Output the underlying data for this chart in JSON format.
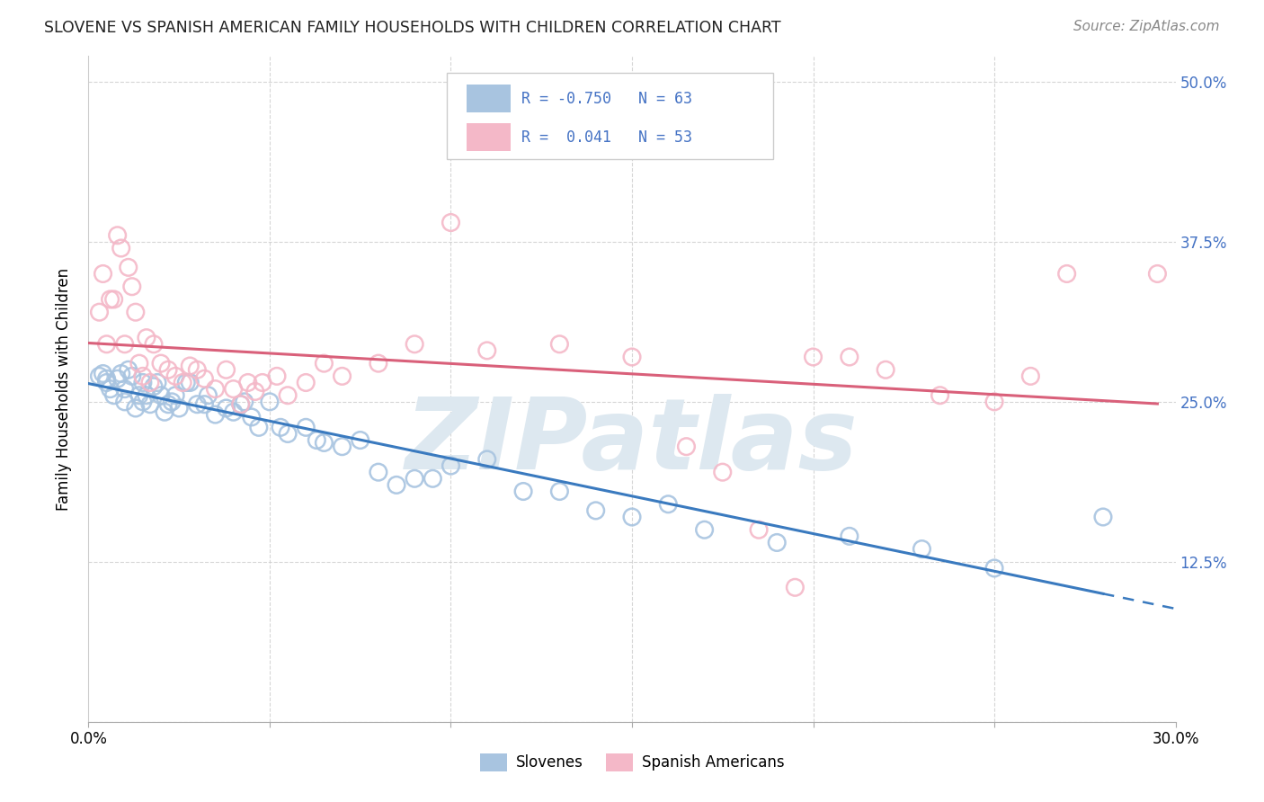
{
  "title": "SLOVENE VS SPANISH AMERICAN FAMILY HOUSEHOLDS WITH CHILDREN CORRELATION CHART",
  "source": "Source: ZipAtlas.com",
  "ylabel": "Family Households with Children",
  "xlim": [
    0.0,
    0.3
  ],
  "ylim": [
    0.0,
    0.52
  ],
  "slovene_marker_color": "#a8c4e0",
  "spanish_marker_color": "#f4b8c8",
  "slovene_line_color": "#3a7abf",
  "spanish_line_color": "#d9607a",
  "legend_text_color": "#4472c4",
  "right_axis_color": "#4472c4",
  "background_color": "#ffffff",
  "grid_color": "#cccccc",
  "title_color": "#222222",
  "source_color": "#888888",
  "watermark_text": "ZIPatlas",
  "watermark_color": "#dde8f0",
  "slovene_x": [
    0.003,
    0.004,
    0.005,
    0.005,
    0.006,
    0.007,
    0.008,
    0.009,
    0.01,
    0.01,
    0.011,
    0.012,
    0.013,
    0.014,
    0.015,
    0.015,
    0.016,
    0.017,
    0.018,
    0.019,
    0.02,
    0.021,
    0.022,
    0.023,
    0.024,
    0.025,
    0.027,
    0.028,
    0.03,
    0.032,
    0.033,
    0.035,
    0.038,
    0.04,
    0.042,
    0.043,
    0.045,
    0.047,
    0.05,
    0.053,
    0.055,
    0.06,
    0.063,
    0.065,
    0.07,
    0.075,
    0.08,
    0.085,
    0.09,
    0.095,
    0.1,
    0.11,
    0.12,
    0.13,
    0.14,
    0.15,
    0.16,
    0.17,
    0.19,
    0.21,
    0.23,
    0.25,
    0.28
  ],
  "slovene_y": [
    0.27,
    0.272,
    0.265,
    0.268,
    0.26,
    0.255,
    0.268,
    0.272,
    0.26,
    0.25,
    0.275,
    0.27,
    0.245,
    0.255,
    0.265,
    0.25,
    0.255,
    0.248,
    0.262,
    0.265,
    0.255,
    0.242,
    0.248,
    0.25,
    0.255,
    0.245,
    0.265,
    0.265,
    0.248,
    0.248,
    0.255,
    0.24,
    0.245,
    0.242,
    0.248,
    0.25,
    0.238,
    0.23,
    0.25,
    0.23,
    0.225,
    0.23,
    0.22,
    0.218,
    0.215,
    0.22,
    0.195,
    0.185,
    0.19,
    0.19,
    0.2,
    0.205,
    0.18,
    0.18,
    0.165,
    0.16,
    0.17,
    0.15,
    0.14,
    0.145,
    0.135,
    0.12,
    0.16
  ],
  "spanish_x": [
    0.003,
    0.004,
    0.005,
    0.006,
    0.007,
    0.008,
    0.009,
    0.01,
    0.011,
    0.012,
    0.013,
    0.014,
    0.015,
    0.016,
    0.017,
    0.018,
    0.02,
    0.022,
    0.024,
    0.026,
    0.028,
    0.03,
    0.032,
    0.035,
    0.038,
    0.04,
    0.042,
    0.044,
    0.046,
    0.048,
    0.052,
    0.055,
    0.06,
    0.065,
    0.07,
    0.08,
    0.09,
    0.1,
    0.11,
    0.13,
    0.15,
    0.165,
    0.175,
    0.185,
    0.195,
    0.2,
    0.21,
    0.22,
    0.235,
    0.25,
    0.26,
    0.27,
    0.295
  ],
  "spanish_y": [
    0.32,
    0.35,
    0.295,
    0.33,
    0.33,
    0.38,
    0.37,
    0.295,
    0.355,
    0.34,
    0.32,
    0.28,
    0.27,
    0.3,
    0.265,
    0.295,
    0.28,
    0.275,
    0.27,
    0.265,
    0.278,
    0.275,
    0.268,
    0.26,
    0.275,
    0.26,
    0.248,
    0.265,
    0.258,
    0.265,
    0.27,
    0.255,
    0.265,
    0.28,
    0.27,
    0.28,
    0.295,
    0.39,
    0.29,
    0.295,
    0.285,
    0.215,
    0.195,
    0.15,
    0.105,
    0.285,
    0.285,
    0.275,
    0.255,
    0.25,
    0.27,
    0.35,
    0.35
  ],
  "yticks": [
    0.0,
    0.125,
    0.25,
    0.375,
    0.5
  ],
  "ytick_labels": [
    "",
    "12.5%",
    "25.0%",
    "37.5%",
    "50.0%"
  ],
  "xticks": [
    0.0,
    0.05,
    0.1,
    0.15,
    0.2,
    0.25,
    0.3
  ],
  "xtick_labels": [
    "0.0%",
    "",
    "",
    "",
    "",
    "",
    "30.0%"
  ]
}
